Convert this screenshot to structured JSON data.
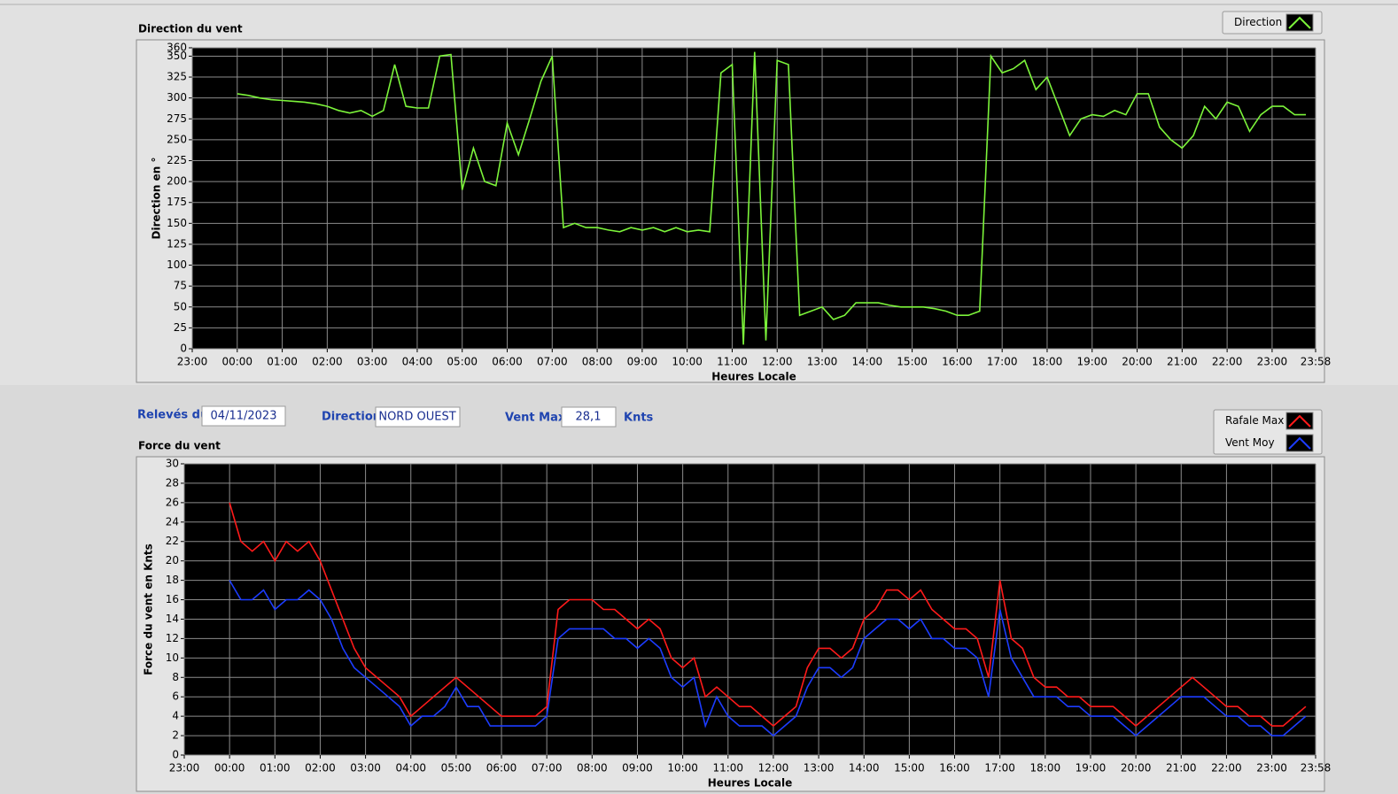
{
  "chart_data": [
    {
      "type": "line",
      "title": "Direction du vent",
      "x_label": "Heures Locale",
      "y_label": "Direction en °",
      "x": [
        60,
        75,
        90,
        105,
        120,
        135,
        150,
        165,
        180,
        195,
        210,
        225,
        240,
        255,
        270,
        285,
        300,
        315,
        330,
        345,
        360,
        375,
        390,
        405,
        420,
        435,
        450,
        465,
        480,
        495,
        510,
        525,
        540,
        555,
        570,
        585,
        600,
        615,
        630,
        645,
        660,
        675,
        690,
        705,
        720,
        735,
        750,
        765,
        780,
        795,
        810,
        825,
        840,
        855,
        870,
        885,
        900,
        915,
        930,
        945,
        960,
        975,
        990,
        1005,
        1020,
        1035,
        1050,
        1065,
        1080,
        1095,
        1110,
        1125,
        1140,
        1155,
        1170,
        1185,
        1200,
        1215,
        1230,
        1245,
        1260,
        1275,
        1290,
        1305,
        1320,
        1335,
        1350,
        1365,
        1380,
        1395,
        1410,
        1425,
        1440,
        1455,
        1470,
        1485
      ],
      "series": [
        {
          "name": "Direction",
          "color": "#7cf43a",
          "values": [
            305,
            303,
            300,
            298,
            297,
            296,
            295,
            293,
            290,
            285,
            282,
            285,
            278,
            285,
            340,
            290,
            288,
            288,
            350,
            352,
            190,
            240,
            200,
            195,
            270,
            232,
            275,
            320,
            350,
            145,
            150,
            145,
            145,
            142,
            140,
            145,
            142,
            145,
            140,
            145,
            140,
            142,
            140,
            330,
            340,
            5,
            355,
            10,
            345,
            340,
            40,
            45,
            50,
            35,
            40,
            55,
            55,
            55,
            52,
            50,
            50,
            50,
            48,
            45,
            40,
            40,
            45,
            350,
            330,
            335,
            345,
            310,
            325,
            290,
            255,
            275,
            280,
            278,
            285,
            280,
            305,
            305,
            265,
            250,
            240,
            255,
            290,
            275,
            295,
            290,
            260,
            280,
            290,
            290,
            280,
            280
          ]
        }
      ],
      "xlim": [
        0,
        1498
      ],
      "xticks": [
        {
          "value": 0,
          "label": "23:00"
        },
        {
          "value": 60,
          "label": "00:00"
        },
        {
          "value": 120,
          "label": "01:00"
        },
        {
          "value": 180,
          "label": "02:00"
        },
        {
          "value": 240,
          "label": "03:00"
        },
        {
          "value": 300,
          "label": "04:00"
        },
        {
          "value": 360,
          "label": "05:00"
        },
        {
          "value": 420,
          "label": "06:00"
        },
        {
          "value": 480,
          "label": "07:00"
        },
        {
          "value": 540,
          "label": "08:00"
        },
        {
          "value": 600,
          "label": "09:00"
        },
        {
          "value": 660,
          "label": "10:00"
        },
        {
          "value": 720,
          "label": "11:00"
        },
        {
          "value": 780,
          "label": "12:00"
        },
        {
          "value": 840,
          "label": "13:00"
        },
        {
          "value": 900,
          "label": "14:00"
        },
        {
          "value": 960,
          "label": "15:00"
        },
        {
          "value": 1020,
          "label": "16:00"
        },
        {
          "value": 1080,
          "label": "17:00"
        },
        {
          "value": 1140,
          "label": "18:00"
        },
        {
          "value": 1200,
          "label": "19:00"
        },
        {
          "value": 1260,
          "label": "20:00"
        },
        {
          "value": 1320,
          "label": "21:00"
        },
        {
          "value": 1380,
          "label": "22:00"
        },
        {
          "value": 1440,
          "label": "23:00"
        },
        {
          "value": 1498,
          "label": "23:58"
        }
      ],
      "ylim": [
        0,
        360
      ],
      "yticks": [
        0,
        25,
        50,
        75,
        100,
        125,
        150,
        175,
        200,
        225,
        250,
        275,
        300,
        325,
        350,
        360
      ],
      "grid": true
    },
    {
      "type": "line",
      "title": "Force du vent",
      "x_label": "Heures Locale",
      "y_label": "Force du vent en Knts",
      "x": [
        60,
        75,
        90,
        105,
        120,
        135,
        150,
        165,
        180,
        195,
        210,
        225,
        240,
        255,
        270,
        285,
        300,
        315,
        330,
        345,
        360,
        375,
        390,
        405,
        420,
        435,
        450,
        465,
        480,
        495,
        510,
        525,
        540,
        555,
        570,
        585,
        600,
        615,
        630,
        645,
        660,
        675,
        690,
        705,
        720,
        735,
        750,
        765,
        780,
        795,
        810,
        825,
        840,
        855,
        870,
        885,
        900,
        915,
        930,
        945,
        960,
        975,
        990,
        1005,
        1020,
        1035,
        1050,
        1065,
        1080,
        1095,
        1110,
        1125,
        1140,
        1155,
        1170,
        1185,
        1200,
        1215,
        1230,
        1245,
        1260,
        1275,
        1290,
        1305,
        1320,
        1335,
        1350,
        1365,
        1380,
        1395,
        1410,
        1425,
        1440,
        1455,
        1470,
        1485
      ],
      "series": [
        {
          "name": "Rafale Max",
          "color": "#ff1a1a",
          "values": [
            26,
            22,
            21,
            22,
            20,
            22,
            21,
            22,
            20,
            17,
            14,
            11,
            9,
            8,
            7,
            6,
            4,
            5,
            6,
            7,
            8,
            7,
            6,
            5,
            4,
            4,
            4,
            4,
            5,
            15,
            16,
            16,
            16,
            15,
            15,
            14,
            13,
            14,
            13,
            10,
            9,
            10,
            6,
            7,
            6,
            5,
            5,
            4,
            3,
            4,
            5,
            9,
            11,
            11,
            10,
            11,
            14,
            15,
            17,
            17,
            16,
            17,
            15,
            14,
            13,
            13,
            12,
            8,
            18,
            12,
            11,
            8,
            7,
            7,
            6,
            6,
            5,
            5,
            5,
            4,
            3,
            4,
            5,
            6,
            7,
            8,
            7,
            6,
            5,
            5,
            4,
            4,
            3,
            3,
            4,
            5
          ]
        },
        {
          "name": "Vent Moy",
          "color": "#1c3cff",
          "values": [
            18,
            16,
            16,
            17,
            15,
            16,
            16,
            17,
            16,
            14,
            11,
            9,
            8,
            7,
            6,
            5,
            3,
            4,
            4,
            5,
            7,
            5,
            5,
            3,
            3,
            3,
            3,
            3,
            4,
            12,
            13,
            13,
            13,
            13,
            12,
            12,
            11,
            12,
            11,
            8,
            7,
            8,
            3,
            6,
            4,
            3,
            3,
            3,
            2,
            3,
            4,
            7,
            9,
            9,
            8,
            9,
            12,
            13,
            14,
            14,
            13,
            14,
            12,
            12,
            11,
            11,
            10,
            6,
            15,
            10,
            8,
            6,
            6,
            6,
            5,
            5,
            4,
            4,
            4,
            3,
            2,
            3,
            4,
            5,
            6,
            6,
            6,
            5,
            4,
            4,
            3,
            3,
            2,
            2,
            3,
            4
          ]
        }
      ],
      "xlim": [
        0,
        1498
      ],
      "xticks": [
        {
          "value": 0,
          "label": "23:00"
        },
        {
          "value": 60,
          "label": "00:00"
        },
        {
          "value": 120,
          "label": "01:00"
        },
        {
          "value": 180,
          "label": "02:00"
        },
        {
          "value": 240,
          "label": "03:00"
        },
        {
          "value": 300,
          "label": "04:00"
        },
        {
          "value": 360,
          "label": "05:00"
        },
        {
          "value": 420,
          "label": "06:00"
        },
        {
          "value": 480,
          "label": "07:00"
        },
        {
          "value": 540,
          "label": "08:00"
        },
        {
          "value": 600,
          "label": "09:00"
        },
        {
          "value": 660,
          "label": "10:00"
        },
        {
          "value": 720,
          "label": "11:00"
        },
        {
          "value": 780,
          "label": "12:00"
        },
        {
          "value": 840,
          "label": "13:00"
        },
        {
          "value": 900,
          "label": "14:00"
        },
        {
          "value": 960,
          "label": "15:00"
        },
        {
          "value": 1020,
          "label": "16:00"
        },
        {
          "value": 1080,
          "label": "17:00"
        },
        {
          "value": 1140,
          "label": "18:00"
        },
        {
          "value": 1200,
          "label": "19:00"
        },
        {
          "value": 1260,
          "label": "20:00"
        },
        {
          "value": 1320,
          "label": "21:00"
        },
        {
          "value": 1380,
          "label": "22:00"
        },
        {
          "value": 1440,
          "label": "23:00"
        },
        {
          "value": 1498,
          "label": "23:58"
        }
      ],
      "ylim": [
        0,
        30
      ],
      "yticks": [
        0,
        2,
        4,
        6,
        8,
        10,
        12,
        14,
        16,
        18,
        20,
        22,
        24,
        26,
        28,
        30
      ],
      "grid": true
    }
  ],
  "controls": {
    "date_label": "Relevés du",
    "date": "04/11/2023",
    "direction_label": "Direction",
    "direction": "NORD OUEST",
    "vent_max_label": "Vent Max",
    "vent_max": "28,1",
    "unit": "Knts"
  }
}
